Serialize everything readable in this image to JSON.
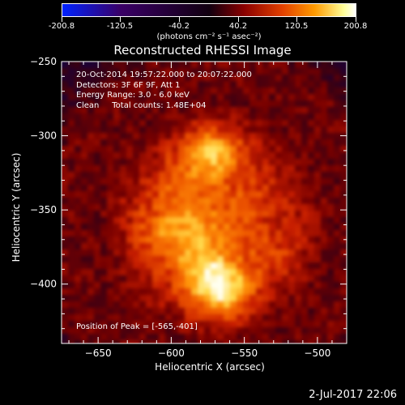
{
  "chart_data": {
    "type": "heatmap",
    "title": "Reconstructed RHESSI Image",
    "xlabel": "Heliocentric X (arcsec)",
    "ylabel": "Heliocentric Y (arcsec)",
    "xlim": [
      -675,
      -480
    ],
    "ylim": [
      -440,
      -250
    ],
    "xticks": [
      -650,
      -600,
      -550,
      -500
    ],
    "yticks": [
      -250,
      -300,
      -350,
      -400
    ],
    "colorbar": {
      "ticks": [
        "-200.8",
        "-120.5",
        "-40.2",
        "40.2",
        "120.5",
        "200.8"
      ],
      "units_text": "(photons cm⁻² s⁻¹ asec⁻²)",
      "range": [
        -200.8,
        200.8
      ]
    },
    "annotations": [
      "20-Oct-2014 19:57:22.000 to 20:07:22.000",
      "Detectors: 3F 6F 9F, Att 1",
      "Energy Range: 3.0 - 6.0 keV",
      "Clean     Total counts: 1.48E+04"
    ],
    "peak_text": "Position of Peak = [-565,-401]",
    "sources": [
      {
        "x": -565,
        "y": -401,
        "intensity": 1.0
      },
      {
        "x": -580,
        "y": -385,
        "intensity": 0.75
      },
      {
        "x": -600,
        "y": -365,
        "intensity": 0.7
      },
      {
        "x": -572,
        "y": -315,
        "intensity": 0.8
      },
      {
        "x": -590,
        "y": -340,
        "intensity": 0.55
      },
      {
        "x": -550,
        "y": -345,
        "intensity": 0.5
      },
      {
        "x": -540,
        "y": -375,
        "intensity": 0.4
      }
    ]
  },
  "footer": {
    "date": "2-Jul-2017 22:06"
  }
}
